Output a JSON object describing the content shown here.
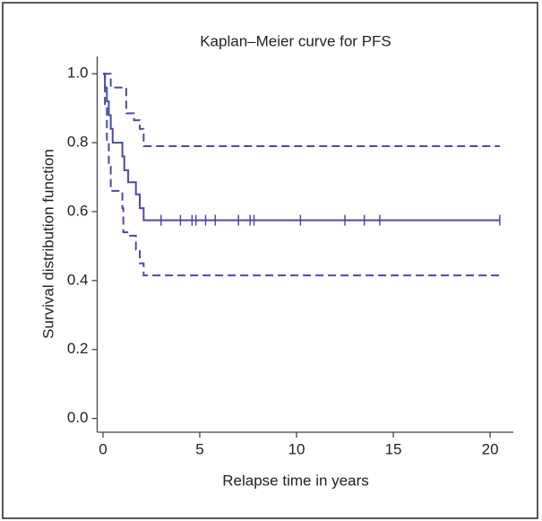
{
  "chart_data": {
    "type": "km-step",
    "title": "Kaplan–Meier curve for PFS",
    "x_label": "Relapse time in years",
    "y_label": "Survival distribution function",
    "xlim": [
      -0.3,
      21.2
    ],
    "ylim": [
      -0.04,
      1.05
    ],
    "xticks": [
      0,
      5,
      10,
      15,
      20
    ],
    "yticks": [
      {
        "value": 0,
        "label": "0.0"
      },
      0.2,
      0.4,
      0.6,
      0.8,
      {
        "value": 1,
        "label": "1.0"
      }
    ],
    "series": [
      {
        "color": "#4a4aa8",
        "style": "solid",
        "x": [
          0,
          0.1,
          0.2,
          0.3,
          0.4,
          0.5,
          1.0,
          1.1,
          1.3,
          1.7,
          1.9,
          2.1,
          20.5
        ],
        "values": [
          1.0,
          0.96,
          0.92,
          0.88,
          0.84,
          0.8,
          0.76,
          0.72,
          0.685,
          0.65,
          0.61,
          0.575,
          0.575
        ]
      },
      {
        "color": "#4a4aa8",
        "style": "dashed",
        "x": [
          0,
          0.4,
          1.2,
          1.6,
          1.9,
          2.1,
          20.5
        ],
        "values": [
          1.0,
          0.96,
          0.885,
          0.865,
          0.84,
          0.79,
          0.79
        ]
      },
      {
        "color": "#4a4aa8",
        "style": "dashed",
        "x": [
          0,
          0.1,
          0.2,
          0.3,
          0.4,
          1.0,
          1.05,
          1.4,
          1.7,
          1.9,
          2.1,
          20.5
        ],
        "values": [
          1.0,
          0.9,
          0.8,
          0.73,
          0.66,
          0.61,
          0.54,
          0.53,
          0.49,
          0.45,
          0.415,
          0.415
        ]
      }
    ],
    "censored": {
      "color": "#4a4aa8",
      "x": [
        3,
        4,
        4.6,
        4.8,
        5.3,
        5.8,
        7,
        7.6,
        7.8,
        10.2,
        12.5,
        13.5,
        14.3,
        20.5
      ],
      "values": [
        0.575,
        0.575,
        0.575,
        0.575,
        0.575,
        0.575,
        0.575,
        0.575,
        0.575,
        0.575,
        0.575,
        0.575,
        0.575,
        0.575
      ]
    }
  }
}
